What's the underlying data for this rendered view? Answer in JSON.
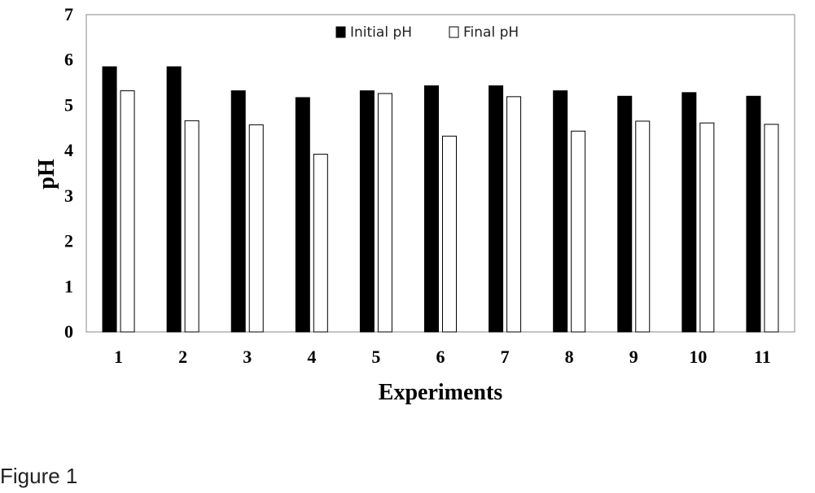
{
  "figure": {
    "caption": "Figure 1"
  },
  "chart_data": {
    "type": "bar",
    "title": "",
    "xlabel": "Experiments",
    "ylabel": "pH",
    "ylim": [
      0,
      7
    ],
    "yticks": [
      0,
      1,
      2,
      3,
      4,
      5,
      6,
      7
    ],
    "grid": false,
    "legend_position": "top-center",
    "categories": [
      "1",
      "2",
      "3",
      "4",
      "5",
      "6",
      "7",
      "8",
      "9",
      "10",
      "11"
    ],
    "series": [
      {
        "name": "Initial pH",
        "color": "#000000",
        "values": [
          5.85,
          5.85,
          5.32,
          5.17,
          5.32,
          5.43,
          5.43,
          5.32,
          5.2,
          5.28,
          5.2
        ]
      },
      {
        "name": "Final pH",
        "color": "#ffffff",
        "values": [
          5.32,
          4.66,
          4.57,
          3.92,
          5.26,
          4.32,
          5.19,
          4.43,
          4.65,
          4.61,
          4.58
        ]
      }
    ]
  }
}
